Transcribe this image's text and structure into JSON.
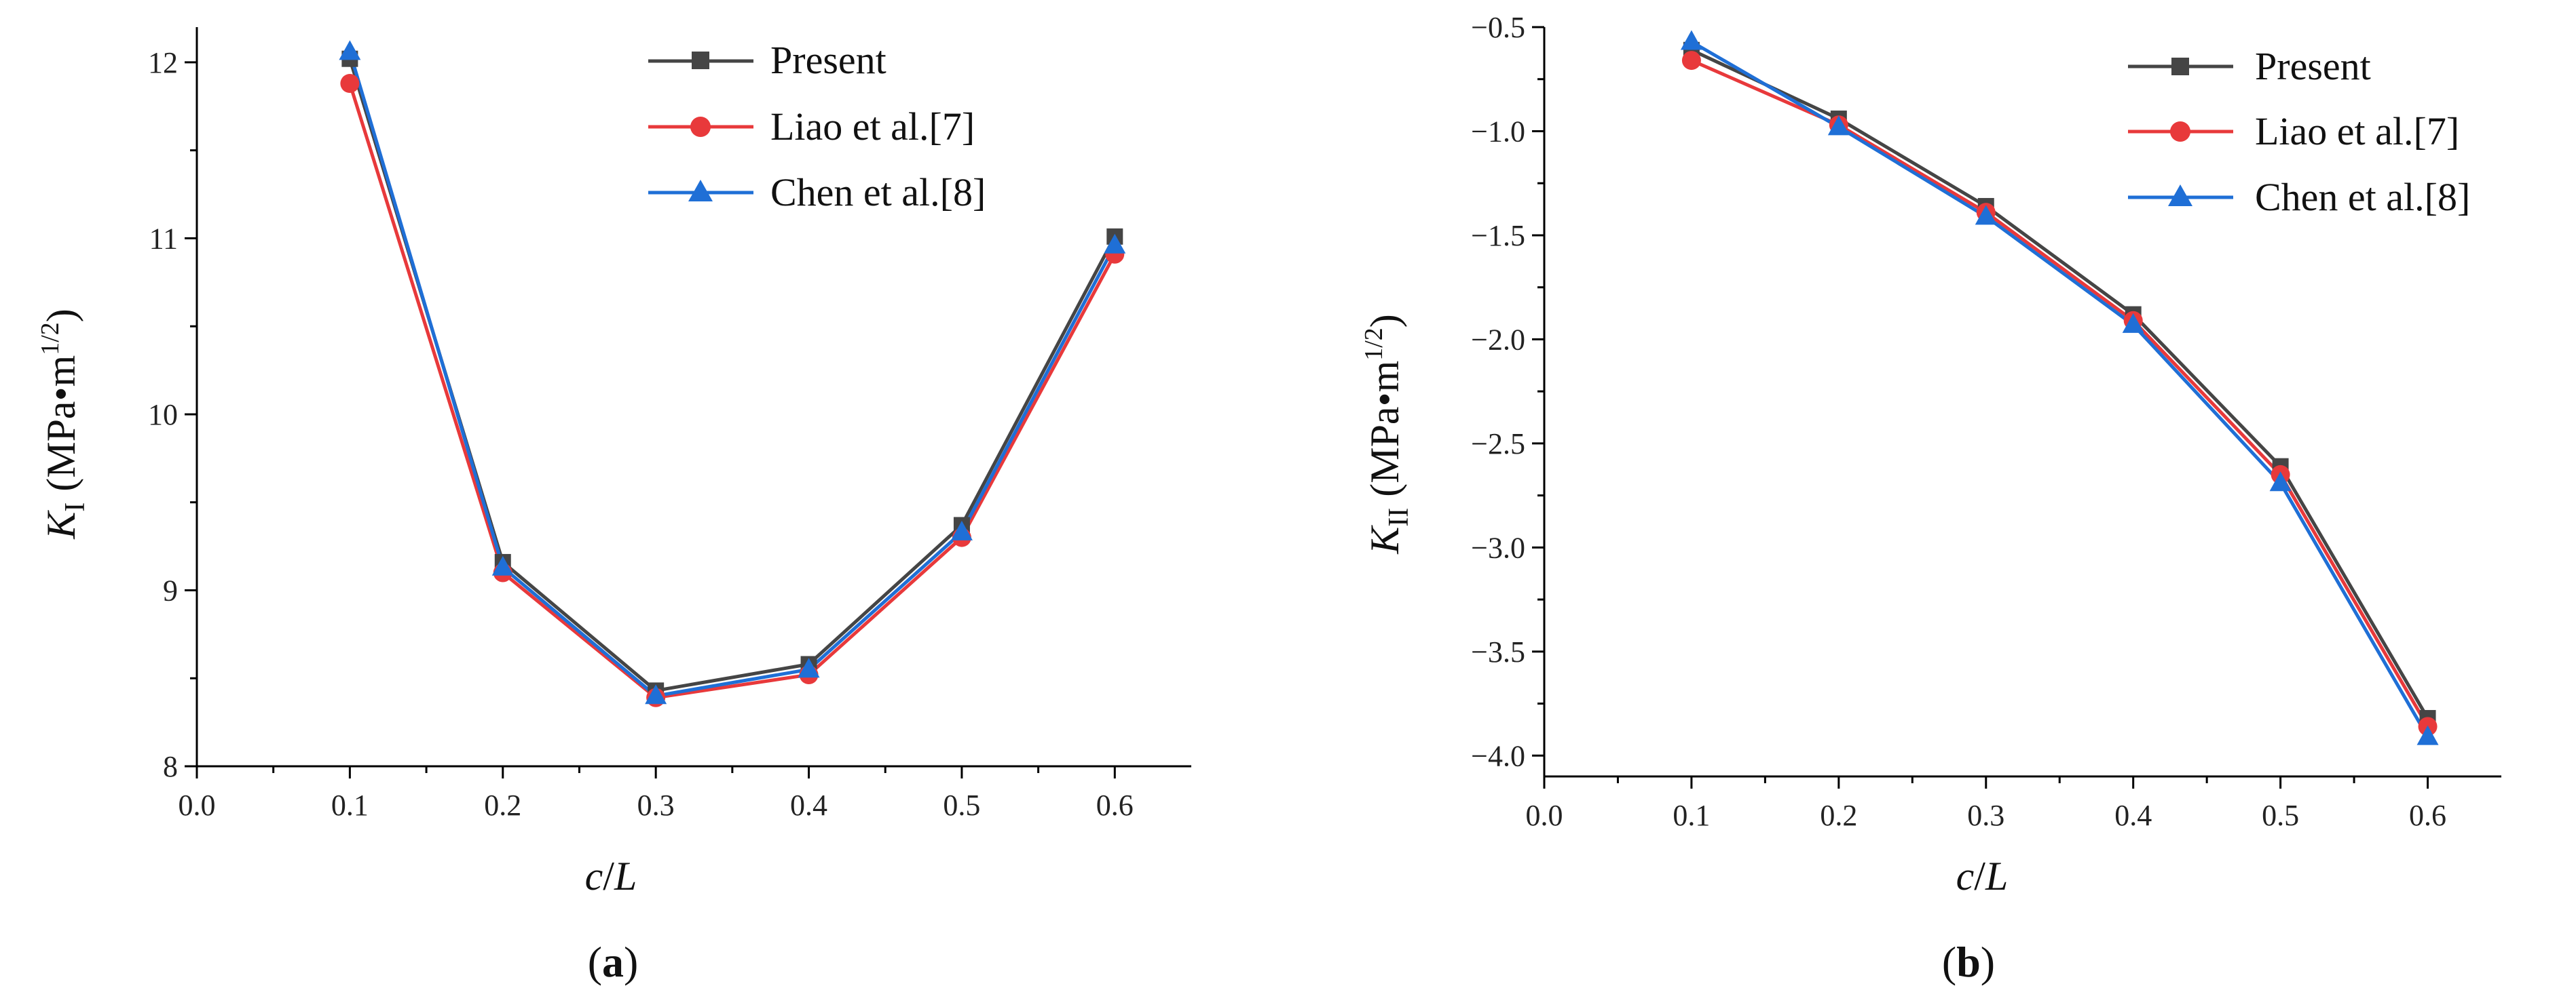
{
  "chart_data": [
    {
      "type": "line",
      "panel_label": "(a)",
      "panel_label_parts": {
        "open": "(",
        "letter": "a",
        "close": ")"
      },
      "xlabel": "c/L",
      "xlabel_parts": {
        "var1": "c",
        "slash": "/",
        "var2": "L"
      },
      "ylabel": "K_I (MPa•m^1/2)",
      "ylabel_parts": {
        "var": "K",
        "sub": "I",
        "unit": "(MPa•m",
        "sup": "1/2",
        "close": ")"
      },
      "xlim": [
        0.0,
        0.65
      ],
      "ylim": [
        8,
        12.2
      ],
      "xticks": [
        0.0,
        0.1,
        0.2,
        0.3,
        0.4,
        0.5,
        0.6
      ],
      "xtick_labels": [
        "0.0",
        "0.1",
        "0.2",
        "0.3",
        "0.4",
        "0.5",
        "0.6"
      ],
      "yticks": [
        8,
        9,
        10,
        11,
        12
      ],
      "ytick_labels": [
        "8",
        "9",
        "10",
        "11",
        "12"
      ],
      "legend_position": "top-right",
      "x": [
        0.1,
        0.2,
        0.3,
        0.4,
        0.5,
        0.6
      ],
      "series": [
        {
          "name": "Present",
          "color": "#454545",
          "marker": "square",
          "values": [
            12.02,
            9.16,
            8.43,
            8.58,
            9.37,
            11.01
          ]
        },
        {
          "name": "Liao et al.[7]",
          "color": "#e8393b",
          "marker": "circle",
          "values": [
            11.88,
            9.1,
            8.39,
            8.52,
            9.3,
            10.91
          ]
        },
        {
          "name": "Chen et al.[8]",
          "color": "#1f6fd6",
          "marker": "triangle",
          "values": [
            12.06,
            9.13,
            8.4,
            8.55,
            9.33,
            10.96
          ]
        }
      ]
    },
    {
      "type": "line",
      "panel_label": "(b)",
      "panel_label_parts": {
        "open": "(",
        "letter": "b",
        "close": ")"
      },
      "xlabel": "c/L",
      "xlabel_parts": {
        "var1": "c",
        "slash": "/",
        "var2": "L"
      },
      "ylabel": "K_II (MPa•m^1/2)",
      "ylabel_parts": {
        "var": "K",
        "sub": "II",
        "unit": "(MPa•m",
        "sup": "1/2",
        "close": ")"
      },
      "xlim": [
        0.0,
        0.65
      ],
      "ylim": [
        -4.1,
        -0.5
      ],
      "xticks": [
        0.0,
        0.1,
        0.2,
        0.3,
        0.4,
        0.5,
        0.6
      ],
      "xtick_labels": [
        "0.0",
        "0.1",
        "0.2",
        "0.3",
        "0.4",
        "0.5",
        "0.6"
      ],
      "yticks": [
        -0.5,
        -1.0,
        -1.5,
        -2.0,
        -2.5,
        -3.0,
        -3.5,
        -4.0
      ],
      "ytick_labels": [
        "−0.5",
        "−1.0",
        "−1.5",
        "−2.0",
        "−2.5",
        "−3.0",
        "−3.5",
        "−4.0"
      ],
      "legend_position": "top-right",
      "x": [
        0.1,
        0.2,
        0.3,
        0.4,
        0.5,
        0.6
      ],
      "series": [
        {
          "name": "Present",
          "color": "#454545",
          "marker": "square",
          "values": [
            -0.61,
            -0.94,
            -1.36,
            -1.88,
            -2.61,
            -3.82
          ]
        },
        {
          "name": "Liao et al.[7]",
          "color": "#e8393b",
          "marker": "circle",
          "values": [
            -0.66,
            -0.97,
            -1.39,
            -1.91,
            -2.65,
            -3.86
          ]
        },
        {
          "name": "Chen et al.[8]",
          "color": "#1f6fd6",
          "marker": "triangle",
          "values": [
            -0.57,
            -0.98,
            -1.41,
            -1.93,
            -2.69,
            -3.91
          ]
        }
      ]
    }
  ]
}
